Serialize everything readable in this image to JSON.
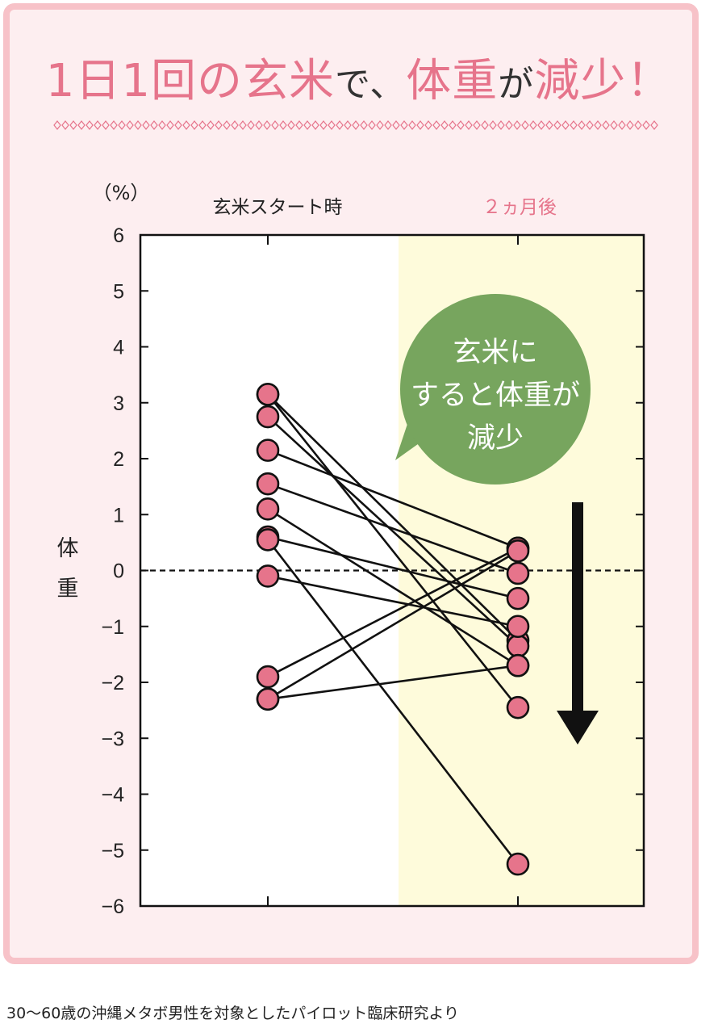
{
  "title": {
    "p1": "1日1回の玄米",
    "p2": "で、",
    "p3": "体重",
    "p4": "が",
    "p5": "減少！"
  },
  "colors": {
    "accent": "#e6748b",
    "border": "#f7c2c8",
    "background": "#fdeef0",
    "highlight": "#fefbdb",
    "bubble": "#77a55e",
    "marker": "#e6748b"
  },
  "chart_data": {
    "type": "line",
    "unit_label": "（%）",
    "ylabel": "体重",
    "categories": [
      "玄米スタート時",
      "２ヵ月後"
    ],
    "ylim": [
      -6,
      6
    ],
    "y_ticks": [
      "6",
      "5",
      "4",
      "3",
      "2",
      "1",
      "0",
      "−1",
      "−2",
      "−3",
      "−4",
      "−5",
      "−6"
    ],
    "y_tick_values": [
      6,
      5,
      4,
      3,
      2,
      1,
      0,
      -1,
      -2,
      -3,
      -4,
      -5,
      -6
    ],
    "reference_line": 0,
    "subjects": [
      {
        "start": 3.15,
        "after": -1.25
      },
      {
        "start": 2.75,
        "after": -1.35
      },
      {
        "start": 2.15,
        "after": 0.4
      },
      {
        "start": 1.55,
        "after": -0.05
      },
      {
        "start": 1.1,
        "after": -1.7
      },
      {
        "start": 0.6,
        "after": -0.5
      },
      {
        "start": -0.1,
        "after": -1.0
      },
      {
        "start": -1.9,
        "after": 0.4
      },
      {
        "start": -2.3,
        "after": -1.7
      },
      {
        "start": 0.55,
        "after": -5.25
      },
      {
        "start": 3.15,
        "after": -2.45
      },
      {
        "start": -2.3,
        "after": 0.35
      }
    ],
    "callout": [
      "玄米に",
      "すると体重が",
      "減少"
    ],
    "highlight_category": "２ヵ月後"
  },
  "caption": "30～60歳の沖縄メタボ男性を対象としたパイロット臨床研究より"
}
